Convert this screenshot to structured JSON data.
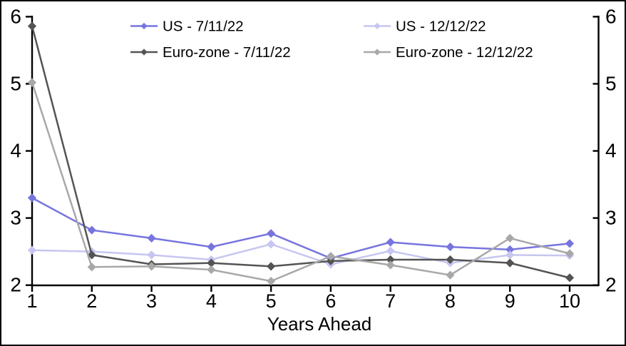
{
  "frame": {
    "background": "#ffffff",
    "border_color": "#000000"
  },
  "chart_data": {
    "type": "line",
    "title": "",
    "xlabel": "Years Ahead",
    "ylabel": "",
    "x": [
      1,
      2,
      3,
      4,
      5,
      6,
      7,
      8,
      9,
      10
    ],
    "xlim": [
      1,
      10
    ],
    "ylim": [
      2,
      6
    ],
    "yticks": [
      2,
      3,
      4,
      5,
      6
    ],
    "xticks": [
      1,
      2,
      3,
      4,
      5,
      6,
      7,
      8,
      9,
      10
    ],
    "grid": false,
    "legend_position": "top",
    "axis_color": "#000000",
    "text_color": "#000000",
    "marker": "diamond",
    "series": [
      {
        "name": "US - 7/11/22",
        "color": "#7775dd",
        "values": [
          3.3,
          2.82,
          2.7,
          2.57,
          2.77,
          2.4,
          2.64,
          2.57,
          2.53,
          2.62
        ]
      },
      {
        "name": "US - 12/12/22",
        "color": "#c7c6f0",
        "values": [
          2.52,
          2.5,
          2.45,
          2.38,
          2.61,
          2.31,
          2.51,
          2.33,
          2.45,
          2.44
        ]
      },
      {
        "name": "Euro-zone - 7/11/22",
        "color": "#545454",
        "values": [
          5.86,
          2.45,
          2.31,
          2.33,
          2.28,
          2.36,
          2.38,
          2.38,
          2.33,
          2.11
        ]
      },
      {
        "name": "Euro-zone - 12/12/22",
        "color": "#a8a8a8",
        "values": [
          5.02,
          2.27,
          2.28,
          2.23,
          2.06,
          2.43,
          2.3,
          2.15,
          2.7,
          2.47
        ]
      }
    ]
  }
}
